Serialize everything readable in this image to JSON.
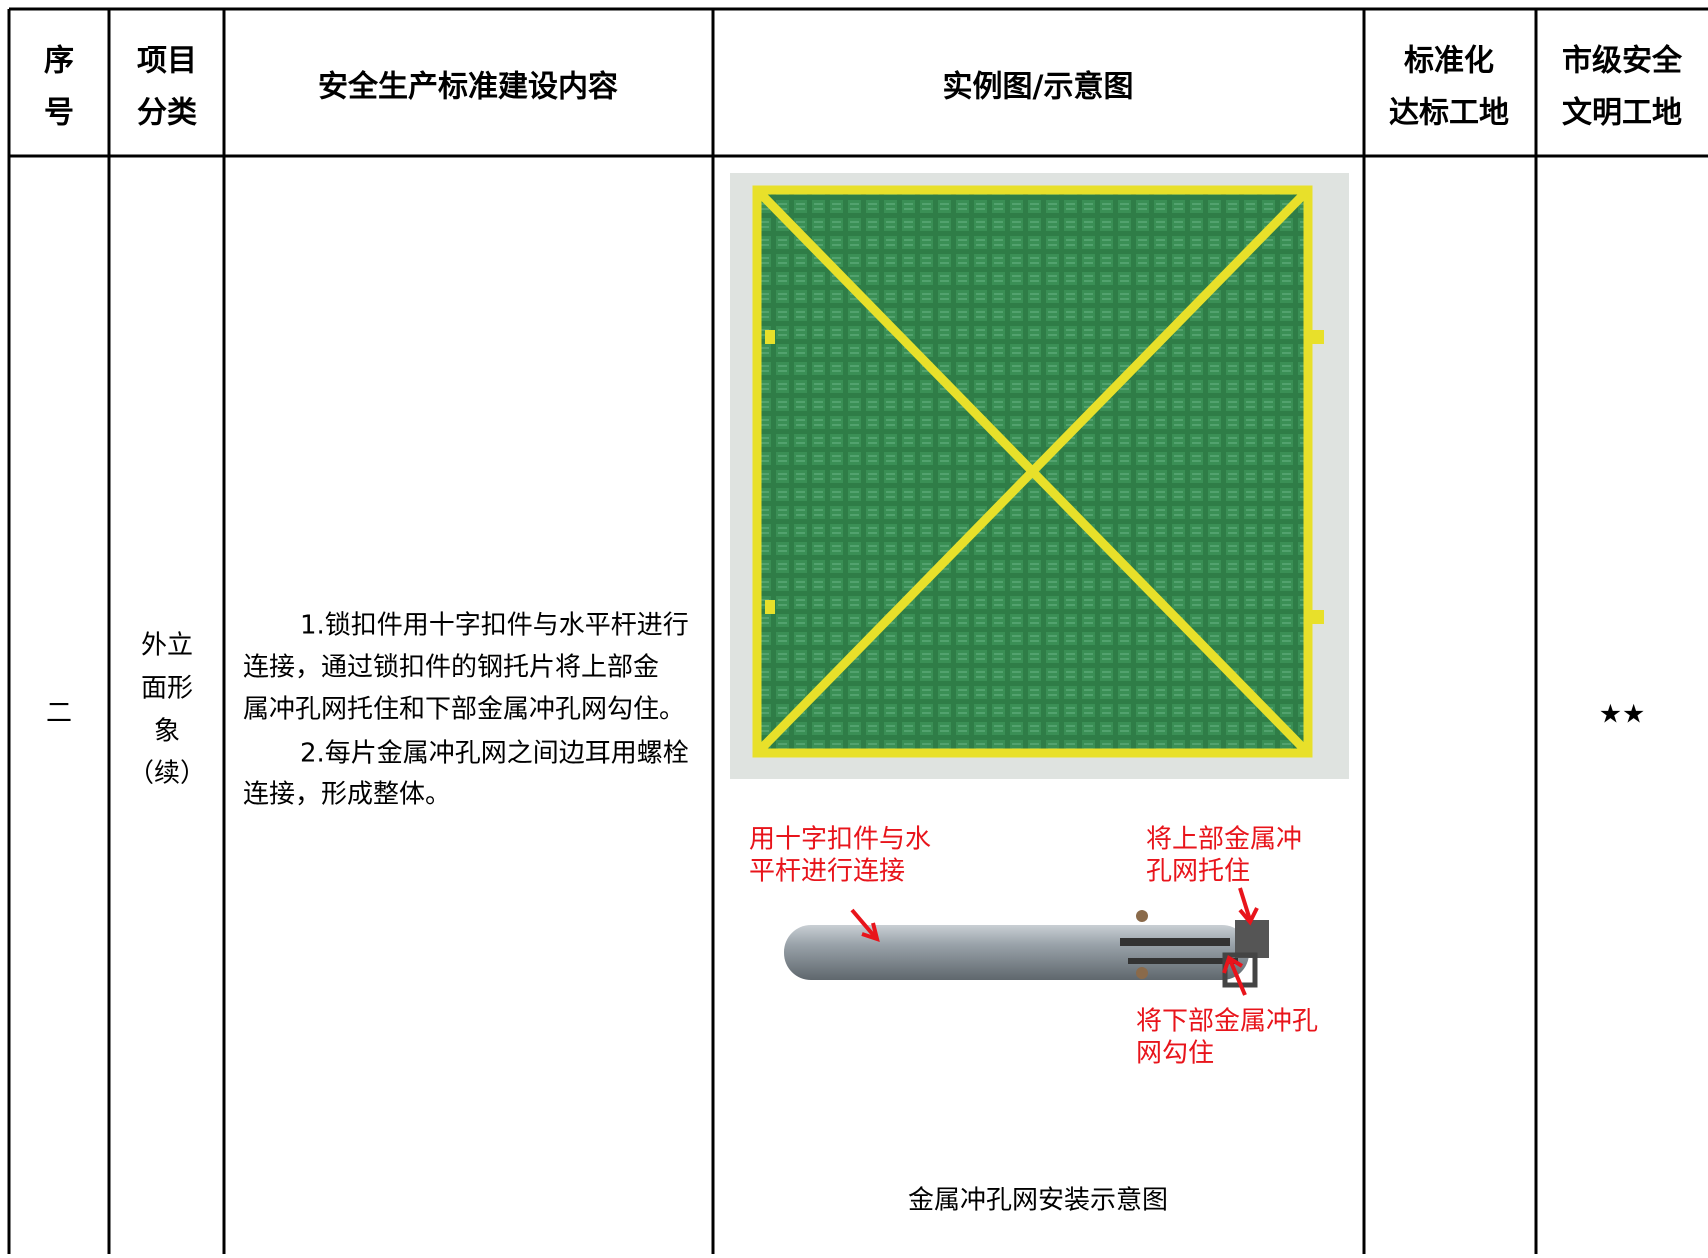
{
  "header": {
    "cells": [
      [
        "序",
        "号"
      ],
      [
        "项目",
        "分类"
      ],
      [
        "安全生产标准建设内容"
      ],
      [
        "实例图/示意图"
      ],
      [
        "标准化",
        "达标工地"
      ],
      [
        "市级安全",
        "文明工地"
      ]
    ]
  },
  "row": {
    "index": "二",
    "category": [
      "外立",
      "面形",
      "象",
      "（续）"
    ],
    "content": [
      "1.锁扣件用十字扣件与水平杆进行",
      "连接，通过锁扣件的钢托片将上部金",
      "属冲孔网托住和下部金属冲孔网勾住。",
      "2.每片金属冲孔网之间边耳用螺栓",
      "连接，形成整体。"
    ],
    "annotations": [
      [
        "用十字扣件与水",
        "平杆进行连接"
      ],
      [
        "将上部金属冲",
        "孔网托住"
      ],
      [
        "将下部金属冲孔",
        "网勾住"
      ]
    ],
    "caption": "金属冲孔网安装示意图",
    "city_level": "★★"
  }
}
